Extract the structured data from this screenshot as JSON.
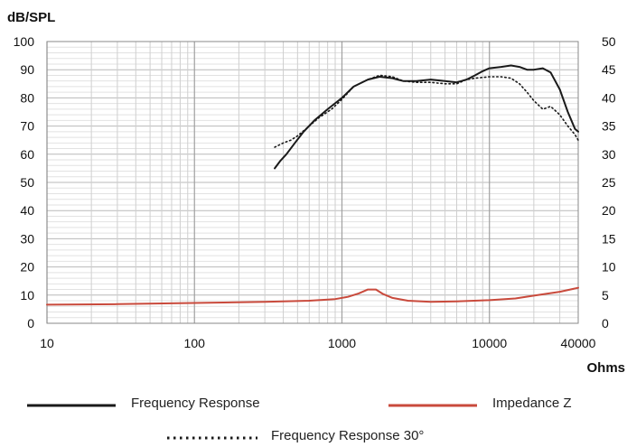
{
  "chart_data": {
    "type": "line",
    "x_scale": "log",
    "xlim": [
      10,
      40000
    ],
    "ylim_left": [
      0,
      100
    ],
    "ylim_right": [
      0,
      50
    ],
    "x_ticks": [
      "10",
      "100",
      "1000",
      "10000",
      "40000"
    ],
    "y_left_ticks": [
      "0",
      "10",
      "20",
      "30",
      "40",
      "50",
      "60",
      "70",
      "80",
      "90",
      "100"
    ],
    "y_right_ticks": [
      "0",
      "5",
      "10",
      "15",
      "20",
      "25",
      "30",
      "35",
      "40",
      "45",
      "50"
    ],
    "ylabel_left": "dB/SPL",
    "xlabel_unit": "Ohms",
    "grid": true,
    "legend_position": "bottom",
    "series": [
      {
        "name": "Frequency Response",
        "axis": "left",
        "color": "#1a1a1a",
        "style": "solid",
        "x": [
          350,
          380,
          420,
          480,
          550,
          650,
          800,
          1000,
          1200,
          1500,
          1800,
          2200,
          2600,
          3200,
          4000,
          5000,
          6000,
          7000,
          8000,
          9000,
          10000,
          12000,
          14000,
          16000,
          18000,
          20000,
          23000,
          26000,
          30000,
          34000,
          38000,
          40000
        ],
        "y": [
          55,
          57.5,
          60,
          64,
          68,
          72,
          76,
          80,
          84,
          86.5,
          87.5,
          87,
          86,
          86,
          86.5,
          86,
          85.5,
          86.5,
          88,
          89.5,
          90.5,
          91,
          91.5,
          91,
          90,
          90,
          90.5,
          89,
          83,
          75,
          69,
          68
        ]
      },
      {
        "name": "Frequency Response 30°",
        "axis": "left",
        "color": "#1a1a1a",
        "style": "dotted",
        "x": [
          350,
          400,
          450,
          500,
          600,
          700,
          850,
          1000,
          1200,
          1500,
          1800,
          2200,
          2600,
          3200,
          4000,
          5000,
          6000,
          7000,
          8000,
          10000,
          12000,
          14000,
          16000,
          18000,
          20000,
          23000,
          26000,
          30000,
          34000,
          38000,
          40000
        ],
        "y": [
          62.5,
          64,
          65,
          66.5,
          70,
          73,
          76,
          79.5,
          84,
          86.5,
          88,
          87.5,
          86,
          85.5,
          85.5,
          85,
          85,
          86.5,
          87,
          87.5,
          87.5,
          87,
          85,
          82,
          79,
          76,
          77,
          74,
          70,
          67,
          65
        ]
      },
      {
        "name": "Impedance Z",
        "axis": "right",
        "color": "#c94a3c",
        "style": "solid",
        "x": [
          10,
          30,
          100,
          300,
          600,
          900,
          1100,
          1300,
          1500,
          1700,
          1900,
          2200,
          2800,
          4000,
          6000,
          10000,
          15000,
          20000,
          30000,
          40000
        ],
        "y": [
          3.3,
          3.4,
          3.6,
          3.8,
          4,
          4.3,
          4.7,
          5.3,
          6,
          6,
          5.2,
          4.5,
          4,
          3.8,
          3.9,
          4.1,
          4.4,
          4.9,
          5.6,
          6.3
        ]
      }
    ]
  }
}
